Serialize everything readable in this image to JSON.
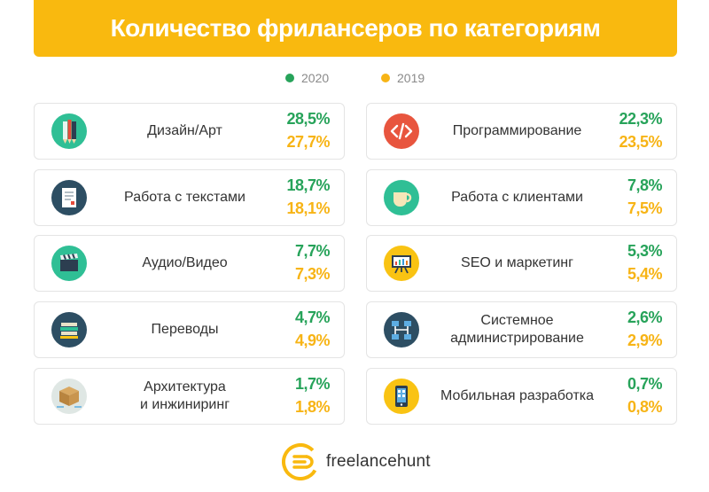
{
  "chart_data": {
    "type": "table",
    "title": "Количество фрилансеров по категориям",
    "legend": [
      {
        "name": "2020",
        "color": "#27a35a"
      },
      {
        "name": "2019",
        "color": "#f7b416"
      }
    ],
    "categories": [
      {
        "label": "Дизайн/Арт",
        "icon": "pencils-icon",
        "v2020": "28,5%",
        "v2019": "27,7%"
      },
      {
        "label": "Программирование",
        "icon": "code-icon",
        "v2020": "22,3%",
        "v2019": "23,5%"
      },
      {
        "label": "Работа с текстами",
        "icon": "document-icon",
        "v2020": "18,7%",
        "v2019": "18,1%"
      },
      {
        "label": "Работа с клиентами",
        "icon": "coffee-cup-icon",
        "v2020": "7,8%",
        "v2019": "7,5%"
      },
      {
        "label": "Аудио/Видео",
        "icon": "clapperboard-icon",
        "v2020": "7,7%",
        "v2019": "7,3%"
      },
      {
        "label": "SEO и маркетинг",
        "icon": "presentation-board-icon",
        "v2020": "5,3%",
        "v2019": "5,4%"
      },
      {
        "label": "Переводы",
        "icon": "books-icon",
        "v2020": "4,7%",
        "v2019": "4,9%"
      },
      {
        "label": "Системное\nадминистрирование",
        "icon": "network-icon",
        "v2020": "2,6%",
        "v2019": "2,9%"
      },
      {
        "label": "Архитектура\nи инжиниринг",
        "icon": "box-icon",
        "v2020": "1,7%",
        "v2019": "1,8%"
      },
      {
        "label": "Мобильная разработка",
        "icon": "smartphone-icon",
        "v2020": "0,7%",
        "v2019": "0,8%"
      }
    ],
    "series": [
      {
        "name": "2020",
        "values": [
          28.5,
          22.3,
          18.7,
          7.8,
          7.7,
          5.3,
          4.7,
          2.6,
          1.7,
          0.7
        ]
      },
      {
        "name": "2019",
        "values": [
          27.7,
          23.5,
          18.1,
          7.5,
          7.3,
          5.4,
          4.9,
          2.9,
          1.8,
          0.8
        ]
      }
    ]
  },
  "footer": {
    "brand": "freelancehunt",
    "logo": "freelancehunt-logo-icon"
  },
  "colors": {
    "banner": "#f9b90f",
    "green": "#27a35a",
    "yellow": "#f7b416"
  }
}
